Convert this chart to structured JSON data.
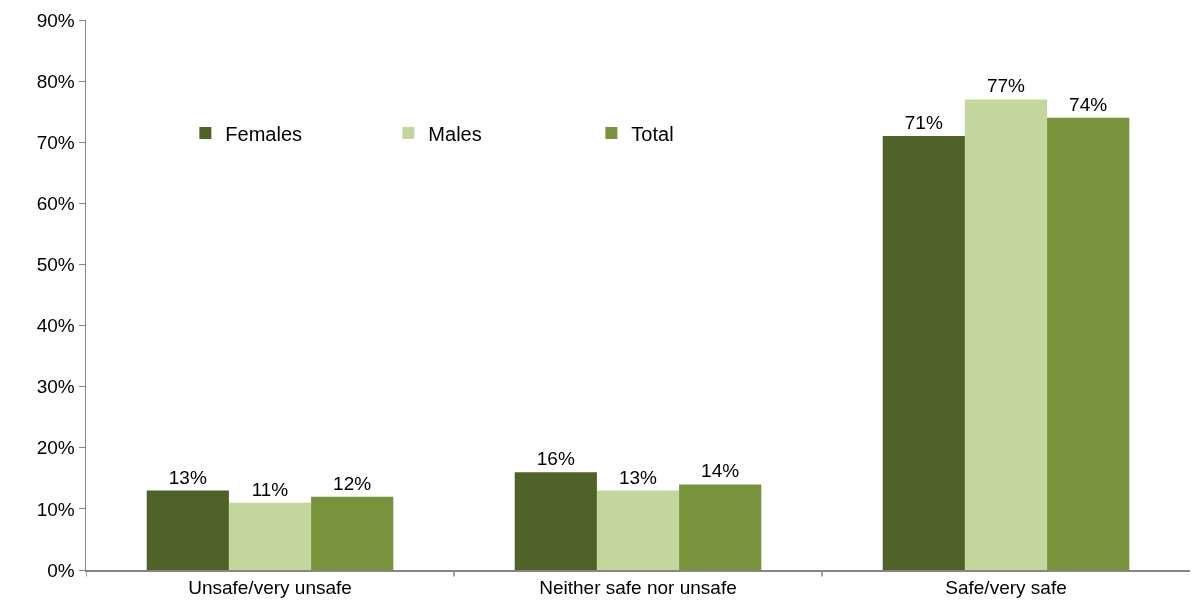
{
  "chart_data": {
    "type": "bar",
    "categories": [
      "Unsafe/very unsafe",
      "Neither safe nor unsafe",
      "Safe/very safe"
    ],
    "series": [
      {
        "name": "Females",
        "color": "#4f6228",
        "values": [
          13,
          16,
          71
        ],
        "value_labels": [
          "13%",
          "16%",
          "71%"
        ]
      },
      {
        "name": "Males",
        "color": "#c3d69b",
        "values": [
          11,
          13,
          77
        ],
        "value_labels": [
          "11%",
          "13%",
          "77%"
        ]
      },
      {
        "name": "Total",
        "color": "#77933c",
        "values": [
          12,
          14,
          74
        ],
        "value_labels": [
          "12%",
          "14%",
          "74%"
        ]
      }
    ],
    "ylim": [
      0,
      90
    ],
    "yticks": [
      {
        "value": 0,
        "label": "0%"
      },
      {
        "value": 10,
        "label": "10%"
      },
      {
        "value": 20,
        "label": "20%"
      },
      {
        "value": 30,
        "label": "30%"
      },
      {
        "value": 40,
        "label": "40%"
      },
      {
        "value": 50,
        "label": "50%"
      },
      {
        "value": 60,
        "label": "60%"
      },
      {
        "value": 70,
        "label": "70%"
      },
      {
        "value": 80,
        "label": "80%"
      },
      {
        "value": 90,
        "label": "90%"
      }
    ],
    "grid": false,
    "legend": "top left"
  }
}
